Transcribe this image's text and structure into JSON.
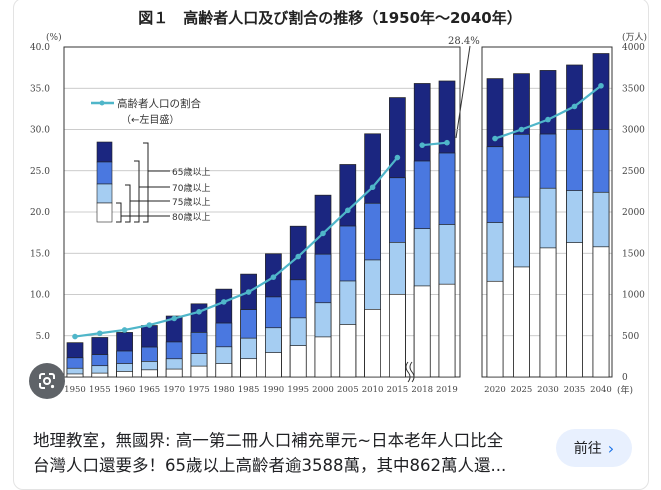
{
  "chart_data": {
    "type": "bar",
    "title": "図１　高齢者人口及び割合の推移（1950年～2040年）",
    "left_axis": {
      "unit_label": "(%)",
      "range": [
        0,
        40
      ],
      "ticks": [
        "0.0",
        "5.0",
        "10.0",
        "15.0",
        "20.0",
        "25.0",
        "30.0",
        "35.0",
        "40.0"
      ]
    },
    "right_axis": {
      "unit_label": "(万人)",
      "range": [
        0,
        4000
      ],
      "ticks": [
        "0",
        "500",
        "1000",
        "1500",
        "2000",
        "2500",
        "3000",
        "3500",
        "4000"
      ]
    },
    "x_unit_label": "(年)",
    "categories": [
      "1950",
      "1955",
      "1960",
      "1965",
      "1970",
      "1975",
      "1980",
      "1985",
      "1990",
      "1995",
      "2000",
      "2005",
      "2010",
      "2015",
      "2018",
      "2019",
      "2020",
      "2025",
      "2030",
      "2035",
      "2040"
    ],
    "annotation": "28.4%",
    "grid": true,
    "stacked_series": [
      {
        "name": "80歳以上",
        "color": "#ffffff",
        "values": [
          37,
          47,
          67,
          87,
          96,
          132,
          163,
          222,
          296,
          380,
          486,
          636,
          820,
          1002,
          1104,
          1125,
          1160,
          1334,
          1565,
          1629,
          1578
        ]
      },
      {
        "name": "75歳以上",
        "color": "#a5cdf2",
        "values": [
          106,
          137,
          163,
          189,
          221,
          284,
          366,
          471,
          597,
          717,
          900,
          1164,
          1419,
          1632,
          1798,
          1848,
          1872,
          2180,
          2288,
          2260,
          2239
        ]
      },
      {
        "name": "70歳以上",
        "color": "#4a78e0",
        "values": [
          233,
          272,
          315,
          363,
          425,
          541,
          654,
          817,
          971,
          1178,
          1489,
          1830,
          2106,
          2415,
          2618,
          2715,
          2791,
          2942,
          2945,
          3001,
          3000
        ]
      },
      {
        "name": "65歳以上",
        "color": "#1b2680",
        "values": [
          416,
          479,
          540,
          624,
          739,
          887,
          1065,
          1247,
          1493,
          1828,
          2204,
          2576,
          2948,
          3387,
          3558,
          3588,
          3617,
          3677,
          3716,
          3782,
          3921
        ]
      }
    ],
    "line_series": {
      "name": "高齢者人口の割合",
      "note": "（←左目盛）",
      "color": "#4fb6c9",
      "values": [
        4.9,
        5.3,
        5.7,
        6.3,
        7.1,
        7.9,
        9.1,
        10.3,
        12.1,
        14.6,
        17.4,
        20.2,
        23.0,
        26.6,
        28.1,
        28.4,
        28.9,
        30.0,
        31.2,
        32.8,
        35.3
      ]
    }
  },
  "caption": {
    "line1": "地理教室，無國界: 高一第二冊人口補充單元~日本老年人口比全",
    "line2": "台灣人口還要多！65歲以上高齡者逾3588萬，其中862萬人還..."
  },
  "goto_button": {
    "label": "前往",
    "icon": "chevron-right-icon"
  },
  "lens_button": {
    "icon": "google-lens-icon"
  }
}
